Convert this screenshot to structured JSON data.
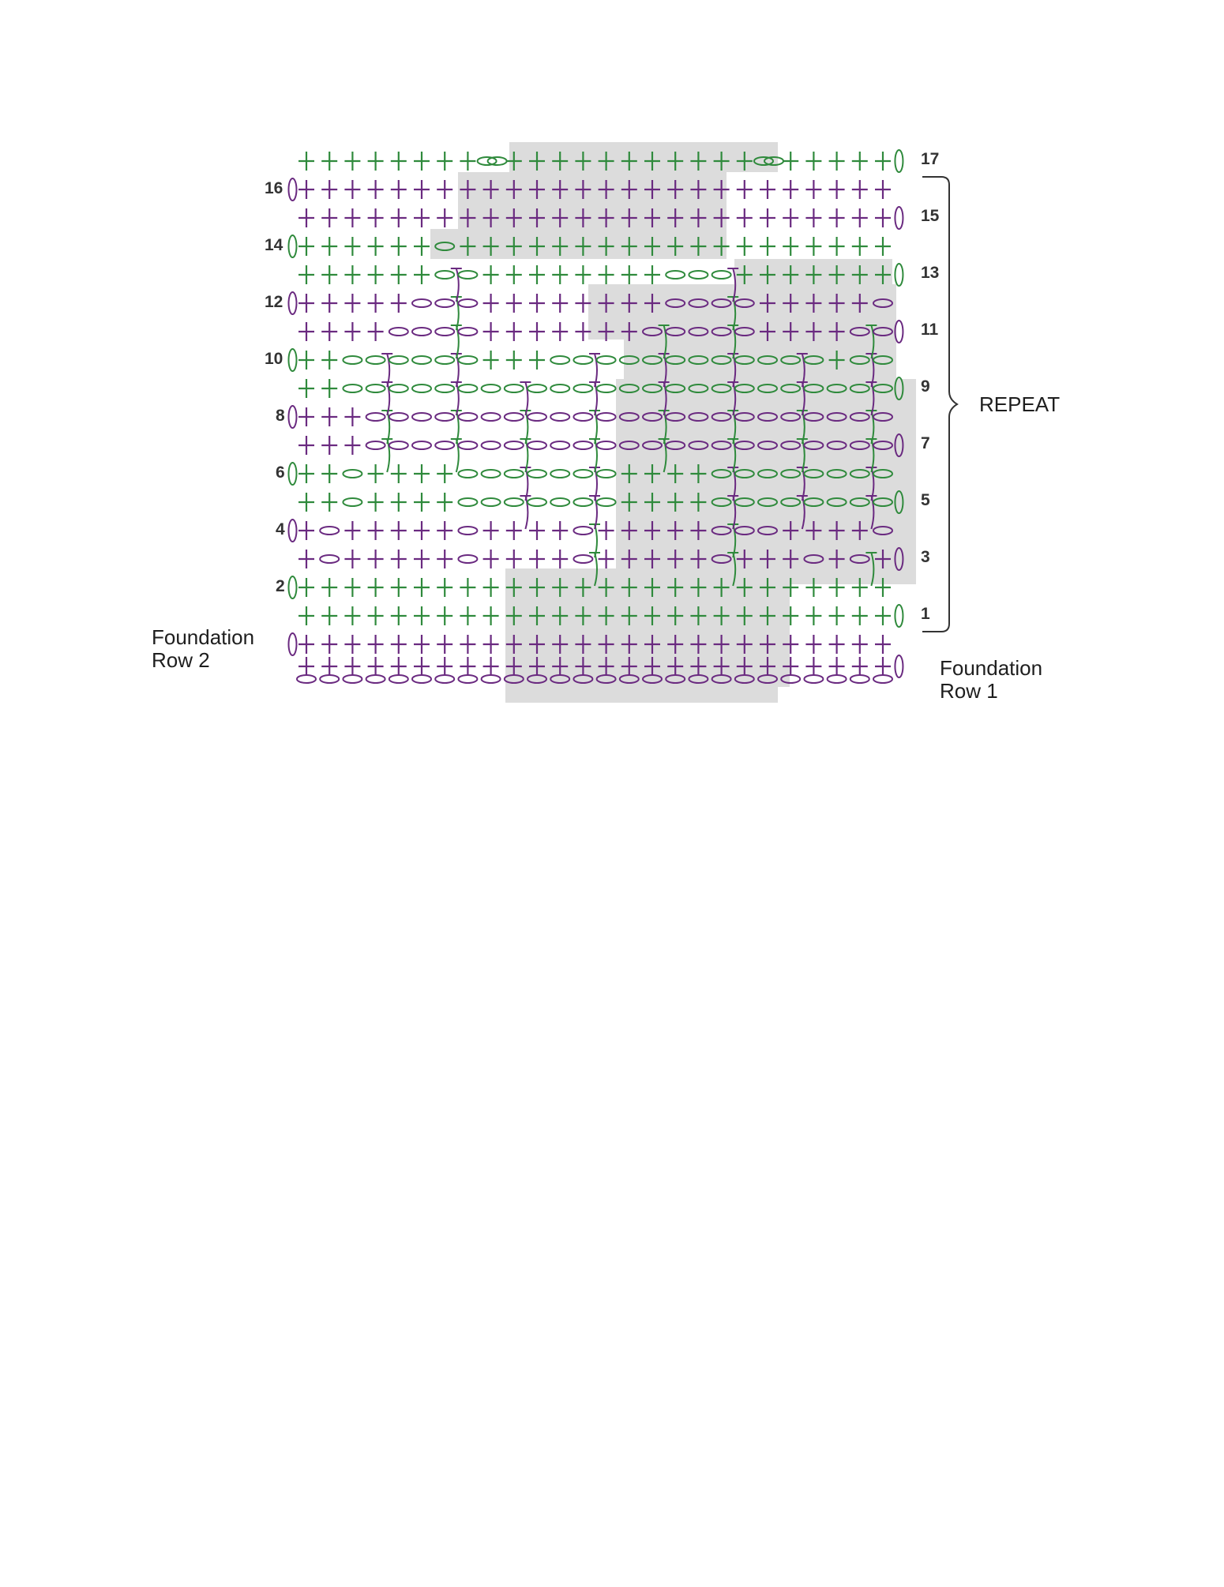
{
  "diagram": {
    "row_numbers_left": [
      "16",
      "14",
      "12",
      "10",
      "8",
      "6",
      "4",
      "2"
    ],
    "row_numbers_right": [
      "17",
      "15",
      "13",
      "11",
      "9",
      "7",
      "5",
      "3",
      "1"
    ],
    "repeat_label": "REPEAT",
    "foundation_row2": {
      "line1": "Foundation",
      "line2": "Row 2"
    },
    "foundation_row1": {
      "line1": "Foundation",
      "line2": "Row 1"
    },
    "stitch_count": 26,
    "colors": {
      "green": "#2f8a3c",
      "purple": "#6a2a80",
      "shade": "#dcdcdc",
      "text": "#333333"
    },
    "legend_symbols": {
      "single_crochet": "cross-icon",
      "chain": "oval-icon",
      "long_stitch": "tall-stitch-icon"
    }
  }
}
